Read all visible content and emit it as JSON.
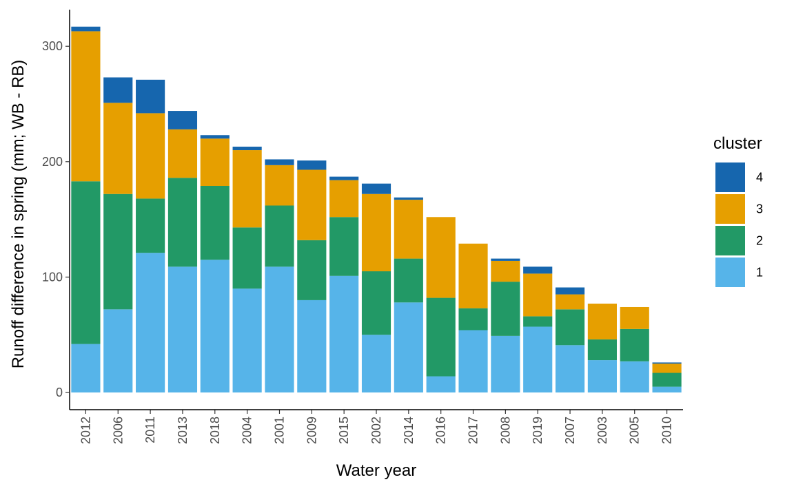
{
  "chart_data": {
    "type": "bar",
    "stacked": true,
    "xlabel": "Water year",
    "ylabel": "Runoff difference in spring (mm; WB - RB)",
    "ylim": [
      -15,
      330
    ],
    "yticks": [
      0,
      100,
      200,
      300
    ],
    "categories": [
      "2012",
      "2006",
      "2011",
      "2013",
      "2018",
      "2004",
      "2001",
      "2009",
      "2015",
      "2002",
      "2014",
      "2016",
      "2017",
      "2008",
      "2019",
      "2007",
      "2003",
      "2005",
      "2010"
    ],
    "legend": {
      "title": "cluster",
      "placement": "right"
    },
    "series": [
      {
        "name": "1",
        "color": "#56B4E9",
        "values": [
          42,
          72,
          121,
          109,
          115,
          90,
          109,
          80,
          101,
          50,
          78,
          14,
          54,
          49,
          57,
          41,
          28,
          27,
          5
        ]
      },
      {
        "name": "2",
        "color": "#229966",
        "values": [
          141,
          100,
          47,
          77,
          64,
          53,
          53,
          52,
          51,
          55,
          38,
          68,
          19,
          47,
          9,
          31,
          18,
          28,
          12
        ]
      },
      {
        "name": "3",
        "color": "#E69F00",
        "values": [
          130,
          79,
          74,
          42,
          41,
          67,
          35,
          61,
          32,
          67,
          51,
          70,
          56,
          18,
          37,
          13,
          31,
          19,
          8
        ]
      },
      {
        "name": "4",
        "color": "#1666AE",
        "values": [
          4,
          22,
          29,
          16,
          3,
          3,
          5,
          8,
          3,
          9,
          2,
          0,
          0,
          2,
          6,
          6,
          0,
          0,
          1
        ]
      }
    ]
  }
}
